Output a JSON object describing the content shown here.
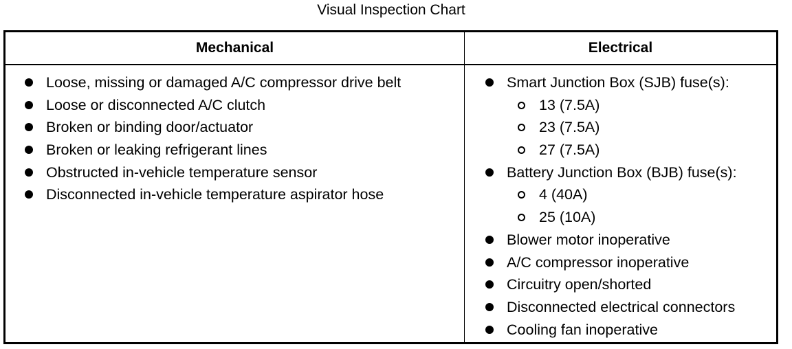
{
  "title": "Visual Inspection Chart",
  "columns": {
    "mechanical": {
      "header": "Mechanical",
      "items": [
        {
          "text": "Loose, missing or damaged A/C compressor drive belt",
          "level": 1
        },
        {
          "text": "Loose or disconnected A/C clutch",
          "level": 1
        },
        {
          "text": "Broken or binding door/actuator",
          "level": 1
        },
        {
          "text": "Broken or leaking refrigerant lines",
          "level": 1
        },
        {
          "text": "Obstructed in-vehicle temperature sensor",
          "level": 1
        },
        {
          "text": "Disconnected in-vehicle temperature aspirator hose",
          "level": 1
        }
      ]
    },
    "electrical": {
      "header": "Electrical",
      "items": [
        {
          "text": "Smart Junction Box (SJB) fuse(s):",
          "level": 1
        },
        {
          "text": "13 (7.5A)",
          "level": 2
        },
        {
          "text": "23 (7.5A)",
          "level": 2
        },
        {
          "text": "27 (7.5A)",
          "level": 2
        },
        {
          "text": "Battery Junction Box (BJB) fuse(s):",
          "level": 1
        },
        {
          "text": "4 (40A)",
          "level": 2
        },
        {
          "text": "25 (10A)",
          "level": 2
        },
        {
          "text": "Blower motor inoperative",
          "level": 1
        },
        {
          "text": "A/C compressor inoperative",
          "level": 1
        },
        {
          "text": "Circuitry open/shorted",
          "level": 1
        },
        {
          "text": "Disconnected electrical connectors",
          "level": 1
        },
        {
          "text": "Cooling fan inoperative",
          "level": 1
        }
      ]
    }
  }
}
